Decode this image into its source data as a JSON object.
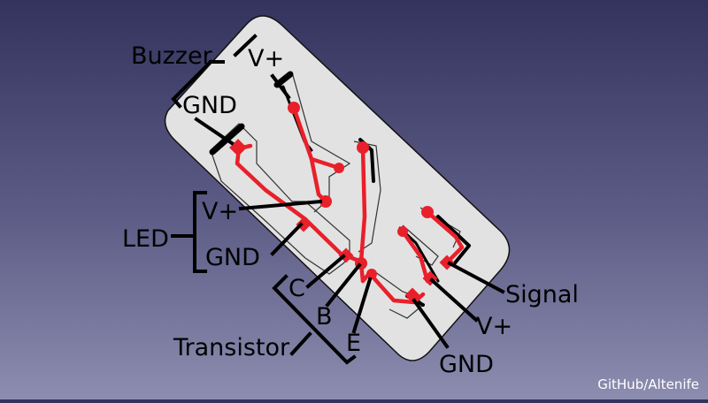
{
  "labels": {
    "buzzer": "Buzzer",
    "buzzer_vplus": "V+",
    "buzzer_gnd": "GND",
    "led": "LED",
    "led_vplus": "V+",
    "led_gnd": "GND",
    "transistor": "Transistor",
    "transistor_c": "C",
    "transistor_b": "B",
    "transistor_e": "E",
    "signal": "Signal",
    "conn_vplus": "V+",
    "conn_gnd": "GND"
  },
  "credit": "GitHub/Altenife",
  "colors": {
    "board": "#e2e2e2",
    "trace": "#e8202a",
    "outline": "#000000",
    "text": "#000000",
    "background_top": "#33335e",
    "background_bottom": "#8d8db0"
  }
}
